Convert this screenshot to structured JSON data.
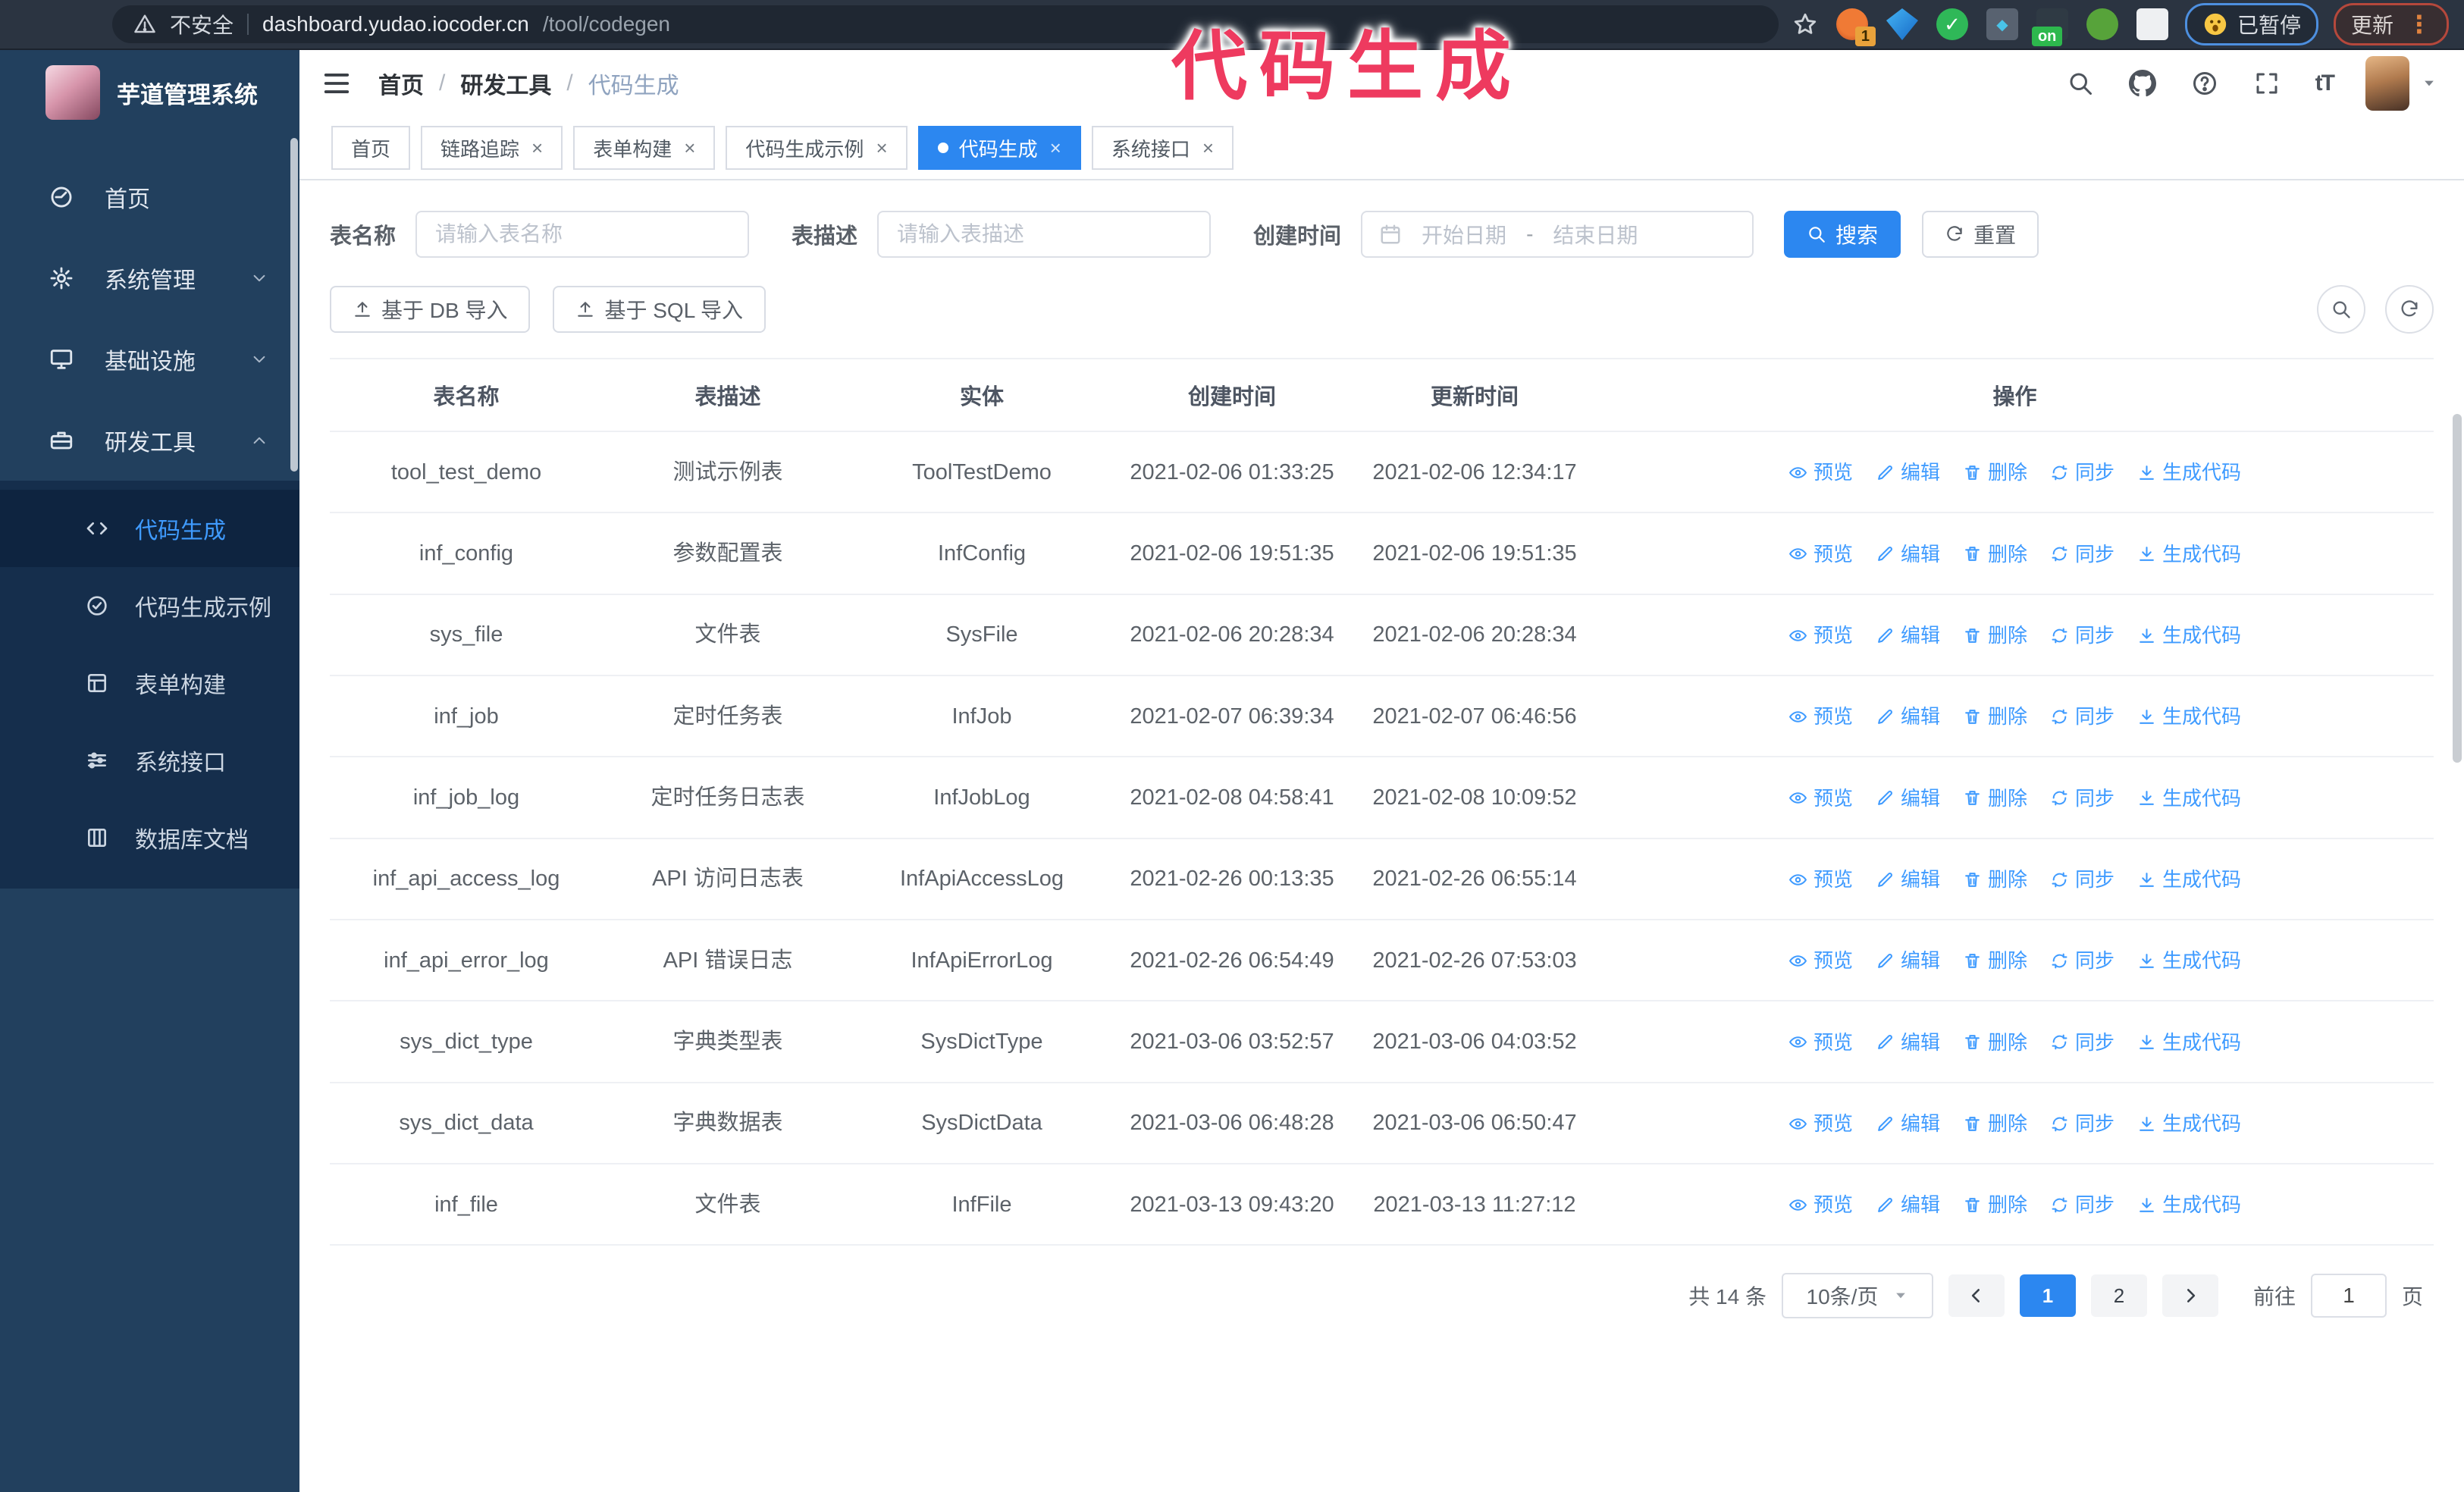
{
  "browser": {
    "nav_icons": [
      "back-icon",
      "forward-icon",
      "reload-icon",
      "home-icon"
    ],
    "security_label": "不安全",
    "url_host": "dashboard.yudao.iocoder.cn",
    "url_path": "/tool/codegen",
    "bookmark_icon": "star-icon",
    "extensions": [
      {
        "icon": "orange-extension-icon",
        "badge": "1"
      },
      {
        "icon": "gem-extension-icon"
      },
      {
        "icon": "green-check-extension-icon"
      },
      {
        "icon": "grid-extension-icon"
      },
      {
        "icon": "dark-extension-icon",
        "badge": "on"
      },
      {
        "icon": "key-extension-icon"
      },
      {
        "icon": "puzzle-extension-icon"
      }
    ],
    "paused_pill": {
      "icon": "face-emoji-icon",
      "label": "已暂停"
    },
    "update_pill": {
      "label": "更新",
      "menu_icon": "kebab-menu-icon"
    }
  },
  "annotation": {
    "text": "代码生成",
    "color": "#ee3a5f"
  },
  "sidebar": {
    "title": "芋道管理系统",
    "items": [
      {
        "id": "home",
        "label": "首页",
        "icon": "dashboard-icon"
      },
      {
        "id": "system",
        "label": "系统管理",
        "icon": "gear-icon",
        "chevron": "chevron-down-icon"
      },
      {
        "id": "infra",
        "label": "基础设施",
        "icon": "monitor-icon",
        "chevron": "chevron-down-icon"
      },
      {
        "id": "devtools",
        "label": "研发工具",
        "icon": "toolbox-icon",
        "chevron": "chevron-up-icon",
        "expanded": true
      }
    ],
    "submenu": [
      {
        "id": "codegen",
        "label": "代码生成",
        "icon": "code-icon",
        "active": true
      },
      {
        "id": "codegen-example",
        "label": "代码生成示例",
        "icon": "badge-check-icon"
      },
      {
        "id": "form-builder",
        "label": "表单构建",
        "icon": "form-icon"
      },
      {
        "id": "system-api",
        "label": "系统接口",
        "icon": "sliders-icon"
      },
      {
        "id": "db-doc",
        "label": "数据库文档",
        "icon": "database-icon"
      }
    ]
  },
  "header": {
    "collapse_icon": "hamburger-icon",
    "breadcrumb": [
      "首页",
      "研发工具",
      "代码生成"
    ],
    "separator": "/",
    "action_icons": [
      "search-icon",
      "github-icon",
      "help-icon",
      "fullscreen-icon",
      "font-size-icon"
    ],
    "avatar_caret": "caret-down-icon"
  },
  "tabs": [
    {
      "id": "home",
      "label": "首页",
      "closable": false,
      "active": false
    },
    {
      "id": "tracing",
      "label": "链路追踪",
      "closable": true,
      "active": false
    },
    {
      "id": "form-builder",
      "label": "表单构建",
      "closable": true,
      "active": false
    },
    {
      "id": "codegen-example",
      "label": "代码生成示例",
      "closable": true,
      "active": false
    },
    {
      "id": "codegen",
      "label": "代码生成",
      "closable": true,
      "active": true
    },
    {
      "id": "system-api",
      "label": "系统接口",
      "closable": true,
      "active": false
    }
  ],
  "filters": {
    "name_label": "表名称",
    "name_placeholder": "请输入表名称",
    "desc_label": "表描述",
    "desc_placeholder": "请输入表描述",
    "time_label": "创建时间",
    "start_placeholder": "开始日期",
    "range_separator": "-",
    "end_placeholder": "结束日期",
    "search_label": "搜索",
    "reset_label": "重置"
  },
  "toolbar": {
    "import_db": "基于 DB 导入",
    "import_sql": "基于 SQL 导入",
    "icon_buttons": [
      {
        "id": "toggle-search",
        "icon": "magnifier-icon"
      },
      {
        "id": "refresh-table",
        "icon": "refresh-icon"
      }
    ]
  },
  "table": {
    "columns": [
      "表名称",
      "表描述",
      "实体",
      "创建时间",
      "更新时间",
      "操作"
    ],
    "row_actions": [
      {
        "id": "preview",
        "label": "预览",
        "icon": "eye-icon"
      },
      {
        "id": "edit",
        "label": "编辑",
        "icon": "edit-icon"
      },
      {
        "id": "delete",
        "label": "删除",
        "icon": "delete-icon"
      },
      {
        "id": "sync",
        "label": "同步",
        "icon": "sync-icon"
      },
      {
        "id": "generate",
        "label": "生成代码",
        "icon": "download-icon"
      }
    ],
    "rows": [
      {
        "name": "tool_test_demo",
        "desc": "测试示例表",
        "entity": "ToolTestDemo",
        "created": "2021-02-06 01:33:25",
        "updated": "2021-02-06 12:34:17"
      },
      {
        "name": "inf_config",
        "desc": "参数配置表",
        "entity": "InfConfig",
        "created": "2021-02-06 19:51:35",
        "updated": "2021-02-06 19:51:35"
      },
      {
        "name": "sys_file",
        "desc": "文件表",
        "entity": "SysFile",
        "created": "2021-02-06 20:28:34",
        "updated": "2021-02-06 20:28:34"
      },
      {
        "name": "inf_job",
        "desc": "定时任务表",
        "entity": "InfJob",
        "created": "2021-02-07 06:39:34",
        "updated": "2021-02-07 06:46:56"
      },
      {
        "name": "inf_job_log",
        "desc": "定时任务日志表",
        "entity": "InfJobLog",
        "created": "2021-02-08 04:58:41",
        "updated": "2021-02-08 10:09:52"
      },
      {
        "name": "inf_api_access_log",
        "desc": "API 访问日志表",
        "entity": "InfApiAccessLog",
        "created": "2021-02-26 00:13:35",
        "updated": "2021-02-26 06:55:14"
      },
      {
        "name": "inf_api_error_log",
        "desc": "API 错误日志",
        "entity": "InfApiErrorLog",
        "created": "2021-02-26 06:54:49",
        "updated": "2021-02-26 07:53:03"
      },
      {
        "name": "sys_dict_type",
        "desc": "字典类型表",
        "entity": "SysDictType",
        "created": "2021-03-06 03:52:57",
        "updated": "2021-03-06 04:03:52"
      },
      {
        "name": "sys_dict_data",
        "desc": "字典数据表",
        "entity": "SysDictData",
        "created": "2021-03-06 06:48:28",
        "updated": "2021-03-06 06:50:47"
      },
      {
        "name": "inf_file",
        "desc": "文件表",
        "entity": "InfFile",
        "created": "2021-03-13 09:43:20",
        "updated": "2021-03-13 11:27:12"
      }
    ]
  },
  "pagination": {
    "total_label": "共 14 条",
    "page_size": "10条/页",
    "pages": [
      "1",
      "2"
    ],
    "active_page": "1",
    "goto_label": "前往",
    "goto_value": "1",
    "page_unit": "页"
  },
  "colors": {
    "primary": "#2c87f0",
    "link": "#3f9bff",
    "annotation": "#ee3a5f",
    "sidebar_bg": "#22405e",
    "submenu_bg": "#152e4c",
    "browser_bar_bg": "#2b3441"
  }
}
